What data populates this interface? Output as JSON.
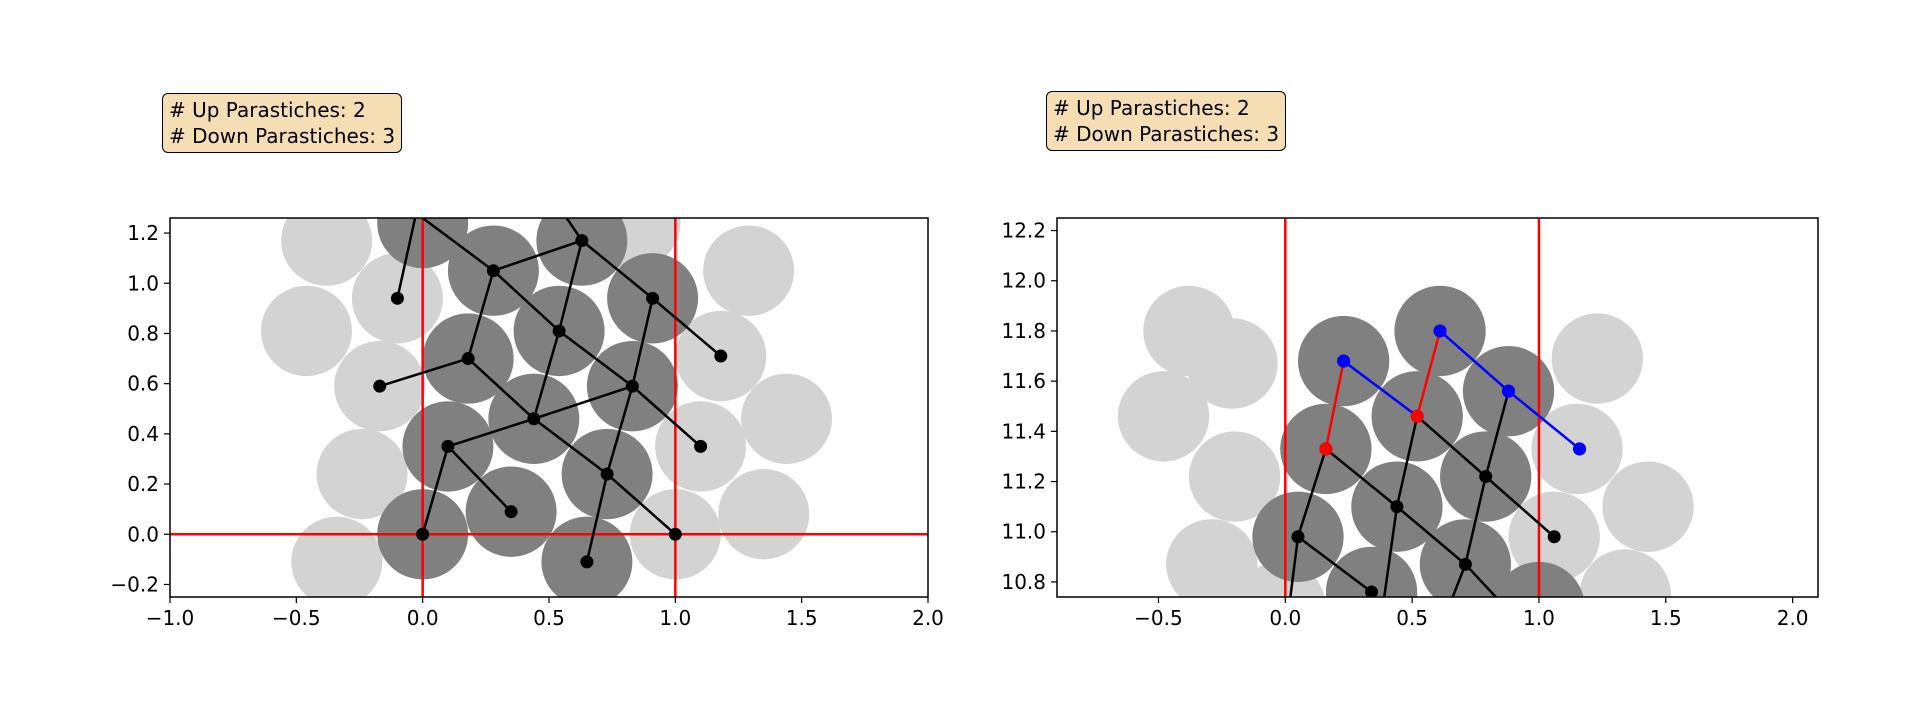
{
  "chart_data": [
    {
      "type": "scatter",
      "title": "",
      "xlabel": "",
      "ylabel": "",
      "xlim": [
        -1.0,
        2.0
      ],
      "ylim": [
        -0.25,
        1.26
      ],
      "xticks": [
        -1.0,
        -0.5,
        0.0,
        0.5,
        1.0,
        1.5,
        2.0
      ],
      "yticks": [
        -0.2,
        0.0,
        0.2,
        0.4,
        0.6,
        0.8,
        1.0,
        1.2
      ],
      "annotation": {
        "up_label": "# Up Parastiches: 2",
        "down_label": "# Down Parastiches: 3"
      },
      "colors": {
        "light_disk": "#d3d3d3",
        "dark_disk": "#808080",
        "reference_line": "#ff0000",
        "edge": "#000000"
      },
      "disk_radius": 0.18,
      "reference_lines": {
        "vertical_x": [
          0.0,
          1.0
        ],
        "horizontal_y": [
          0.0
        ]
      },
      "light_disks": [
        [
          -0.38,
          1.17
        ],
        [
          -0.46,
          0.81
        ],
        [
          -0.24,
          0.24
        ],
        [
          -0.34,
          -0.11
        ],
        [
          -0.1,
          0.94
        ],
        [
          0.84,
          1.24
        ],
        [
          1.29,
          1.05
        ],
        [
          1.18,
          0.71
        ],
        [
          1.44,
          0.46
        ],
        [
          1.1,
          0.35
        ],
        [
          1.35,
          0.08
        ],
        [
          1.0,
          0.0
        ],
        [
          -0.17,
          0.59
        ]
      ],
      "dark_disks": [
        [
          0.0,
          1.24
        ],
        [
          0.63,
          1.17
        ],
        [
          0.28,
          1.05
        ],
        [
          0.91,
          0.94
        ],
        [
          0.54,
          0.81
        ],
        [
          0.18,
          0.7
        ],
        [
          0.83,
          0.59
        ],
        [
          0.44,
          0.46
        ],
        [
          0.1,
          0.35
        ],
        [
          0.73,
          0.24
        ],
        [
          0.35,
          0.09
        ],
        [
          0.0,
          0.0
        ],
        [
          0.65,
          -0.11
        ]
      ],
      "points": [
        [
          0.0,
          0.0
        ],
        [
          0.35,
          0.09
        ],
        [
          0.1,
          0.35
        ],
        [
          0.73,
          0.24
        ],
        [
          0.44,
          0.46
        ],
        [
          1.0,
          0.0
        ],
        [
          0.65,
          -0.11
        ],
        [
          1.1,
          0.35
        ],
        [
          0.83,
          0.59
        ],
        [
          -0.17,
          0.59
        ],
        [
          0.18,
          0.7
        ],
        [
          0.54,
          0.81
        ],
        [
          1.18,
          0.71
        ],
        [
          0.91,
          0.94
        ],
        [
          0.28,
          1.05
        ],
        [
          -0.1,
          0.94
        ],
        [
          0.63,
          1.17
        ]
      ],
      "edges": [
        {
          "from": [
            0.0,
            0.0
          ],
          "to": [
            0.1,
            0.35
          ],
          "color": "#000000"
        },
        {
          "from": [
            0.1,
            0.35
          ],
          "to": [
            0.35,
            0.09
          ],
          "color": "#000000"
        },
        {
          "from": [
            0.1,
            0.35
          ],
          "to": [
            0.44,
            0.46
          ],
          "color": "#000000"
        },
        {
          "from": [
            0.44,
            0.46
          ],
          "to": [
            0.73,
            0.24
          ],
          "color": "#000000"
        },
        {
          "from": [
            0.73,
            0.24
          ],
          "to": [
            1.0,
            0.0
          ],
          "color": "#000000"
        },
        {
          "from": [
            0.73,
            0.24
          ],
          "to": [
            0.65,
            -0.11
          ],
          "color": "#000000"
        },
        {
          "from": [
            0.44,
            0.46
          ],
          "to": [
            0.18,
            0.7
          ],
          "color": "#000000"
        },
        {
          "from": [
            0.44,
            0.46
          ],
          "to": [
            0.83,
            0.59
          ],
          "color": "#000000"
        },
        {
          "from": [
            0.83,
            0.59
          ],
          "to": [
            0.73,
            0.24
          ],
          "color": "#000000"
        },
        {
          "from": [
            0.83,
            0.59
          ],
          "to": [
            1.1,
            0.35
          ],
          "color": "#000000"
        },
        {
          "from": [
            0.18,
            0.7
          ],
          "to": [
            -0.17,
            0.59
          ],
          "color": "#000000"
        },
        {
          "from": [
            0.18,
            0.7
          ],
          "to": [
            0.28,
            1.05
          ],
          "color": "#000000"
        },
        {
          "from": [
            0.44,
            0.46
          ],
          "to": [
            0.54,
            0.81
          ],
          "color": "#000000"
        },
        {
          "from": [
            0.54,
            0.81
          ],
          "to": [
            0.83,
            0.59
          ],
          "color": "#000000"
        },
        {
          "from": [
            0.54,
            0.81
          ],
          "to": [
            0.63,
            1.17
          ],
          "color": "#000000"
        },
        {
          "from": [
            0.54,
            0.81
          ],
          "to": [
            0.28,
            1.05
          ],
          "color": "#000000"
        },
        {
          "from": [
            0.28,
            1.05
          ],
          "to": [
            0.63,
            1.17
          ],
          "color": "#000000"
        },
        {
          "from": [
            0.83,
            0.59
          ],
          "to": [
            0.91,
            0.94
          ],
          "color": "#000000"
        },
        {
          "from": [
            0.91,
            0.94
          ],
          "to": [
            1.18,
            0.71
          ],
          "color": "#000000"
        },
        {
          "from": [
            0.91,
            0.94
          ],
          "to": [
            0.63,
            1.17
          ],
          "color": "#000000"
        },
        {
          "from": [
            0.28,
            1.05
          ],
          "to": [
            0.0,
            1.26
          ],
          "color": "#000000"
        },
        {
          "from": [
            0.63,
            1.17
          ],
          "to": [
            0.57,
            1.26
          ],
          "color": "#000000"
        },
        {
          "from": [
            -0.1,
            0.94
          ],
          "to": [
            -0.03,
            1.26
          ],
          "color": "#000000"
        }
      ],
      "markers": []
    },
    {
      "type": "scatter",
      "title": "",
      "xlabel": "",
      "ylabel": "",
      "xlim": [
        -0.9,
        2.1
      ],
      "ylim": [
        10.74,
        12.25
      ],
      "xticks": [
        -0.5,
        0.0,
        0.5,
        1.0,
        1.5,
        2.0
      ],
      "yticks": [
        10.8,
        11.0,
        11.2,
        11.4,
        11.6,
        11.8,
        12.0,
        12.2
      ],
      "annotation": {
        "up_label": "# Up Parastiches: 2",
        "down_label": "# Down Parastiches: 3"
      },
      "colors": {
        "light_disk": "#d3d3d3",
        "dark_disk": "#808080",
        "reference_line": "#ff0000",
        "edge": "#000000",
        "up_highlight": "#ff0000",
        "down_highlight": "#0000ff"
      },
      "disk_radius": 0.18,
      "reference_lines": {
        "vertical_x": [
          0.0,
          1.0
        ],
        "horizontal_y": []
      },
      "light_disks": [
        [
          -0.38,
          11.8
        ],
        [
          -0.48,
          11.46
        ],
        [
          -0.21,
          11.67
        ],
        [
          -0.2,
          11.22
        ],
        [
          -0.29,
          10.87
        ],
        [
          1.23,
          11.69
        ],
        [
          1.15,
          11.33
        ],
        [
          1.43,
          11.1
        ],
        [
          1.06,
          10.98
        ],
        [
          1.34,
          10.75
        ],
        [
          -0.02,
          10.7
        ]
      ],
      "dark_disks": [
        [
          0.23,
          11.68
        ],
        [
          0.61,
          11.8
        ],
        [
          0.88,
          11.56
        ],
        [
          0.52,
          11.46
        ],
        [
          0.16,
          11.33
        ],
        [
          0.79,
          11.22
        ],
        [
          0.44,
          11.1
        ],
        [
          0.05,
          10.98
        ],
        [
          0.71,
          10.87
        ],
        [
          0.34,
          10.76
        ],
        [
          1.0,
          10.7
        ]
      ],
      "points": [
        [
          0.05,
          10.98
        ],
        [
          0.34,
          10.76
        ],
        [
          0.44,
          11.1
        ],
        [
          0.71,
          10.87
        ],
        [
          0.79,
          11.22
        ],
        [
          1.06,
          10.98
        ],
        [
          0.16,
          11.33
        ],
        [
          0.52,
          11.46
        ],
        [
          0.23,
          11.68
        ],
        [
          0.61,
          11.8
        ],
        [
          0.88,
          11.56
        ],
        [
          1.16,
          11.33
        ]
      ],
      "edges": [
        {
          "from": [
            0.05,
            10.98
          ],
          "to": [
            0.34,
            10.76
          ],
          "color": "#000000"
        },
        {
          "from": [
            0.05,
            10.98
          ],
          "to": [
            0.16,
            11.33
          ],
          "color": "#000000"
        },
        {
          "from": [
            0.05,
            10.98
          ],
          "to": [
            0.02,
            10.74
          ],
          "color": "#000000"
        },
        {
          "from": [
            0.16,
            11.33
          ],
          "to": [
            0.44,
            11.1
          ],
          "color": "#000000"
        },
        {
          "from": [
            0.44,
            11.1
          ],
          "to": [
            0.71,
            10.87
          ],
          "color": "#000000"
        },
        {
          "from": [
            0.44,
            11.1
          ],
          "to": [
            0.52,
            11.46
          ],
          "color": "#000000"
        },
        {
          "from": [
            0.44,
            11.1
          ],
          "to": [
            0.39,
            10.74
          ],
          "color": "#000000"
        },
        {
          "from": [
            0.71,
            10.87
          ],
          "to": [
            0.79,
            11.22
          ],
          "color": "#000000"
        },
        {
          "from": [
            0.71,
            10.87
          ],
          "to": [
            0.83,
            10.74
          ],
          "color": "#000000"
        },
        {
          "from": [
            0.71,
            10.87
          ],
          "to": [
            0.66,
            10.74
          ],
          "color": "#000000"
        },
        {
          "from": [
            0.52,
            11.46
          ],
          "to": [
            0.79,
            11.22
          ],
          "color": "#000000"
        },
        {
          "from": [
            0.79,
            11.22
          ],
          "to": [
            1.06,
            10.98
          ],
          "color": "#000000"
        },
        {
          "from": [
            0.79,
            11.22
          ],
          "to": [
            0.88,
            11.56
          ],
          "color": "#000000"
        },
        {
          "from": [
            0.16,
            11.33
          ],
          "to": [
            0.23,
            11.68
          ],
          "color": "#ff0000"
        },
        {
          "from": [
            0.52,
            11.46
          ],
          "to": [
            0.61,
            11.8
          ],
          "color": "#ff0000"
        },
        {
          "from": [
            0.23,
            11.68
          ],
          "to": [
            0.52,
            11.46
          ],
          "color": "#0000ff"
        },
        {
          "from": [
            0.61,
            11.8
          ],
          "to": [
            0.88,
            11.56
          ],
          "color": "#0000ff"
        },
        {
          "from": [
            0.88,
            11.56
          ],
          "to": [
            1.16,
            11.33
          ],
          "color": "#0000ff"
        }
      ],
      "markers": [
        {
          "x": 0.16,
          "y": 11.33,
          "color": "#ff0000"
        },
        {
          "x": 0.52,
          "y": 11.46,
          "color": "#ff0000"
        },
        {
          "x": 0.23,
          "y": 11.68,
          "color": "#0000ff"
        },
        {
          "x": 0.61,
          "y": 11.8,
          "color": "#0000ff"
        },
        {
          "x": 0.88,
          "y": 11.56,
          "color": "#0000ff"
        },
        {
          "x": 1.16,
          "y": 11.33,
          "color": "#0000ff"
        }
      ]
    }
  ]
}
